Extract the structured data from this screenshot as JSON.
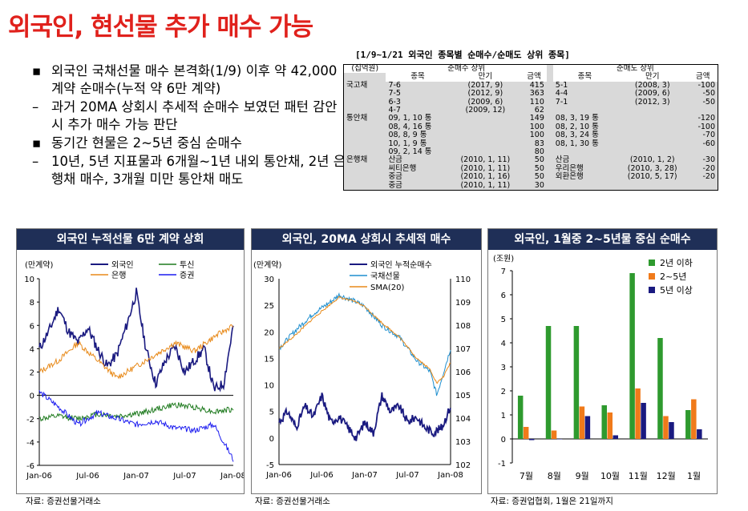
{
  "title": "외국인, 현선물 추가 매수 가능",
  "bullets": [
    {
      "marker": "▪",
      "text": "외국인 국채선물 매수 본격화(1/9) 이후 약 42,000계약 순매수(누적 약 6만 계약)"
    },
    {
      "marker": "–",
      "text": "과거 20MA 상회시 추세적 순매수 보였던 패턴 감안시 추가 매수 가능 판단"
    },
    {
      "marker": "▪",
      "text": "동기간 현물은 2~5년 중심 순매수"
    },
    {
      "marker": "–",
      "text": "10년, 5년 지표물과 6개월~1년 내외 통안채, 2년 은행채 매수, 3개월 미만 통안채 매도"
    }
  ],
  "table": {
    "title": "[1/9~1/21 외국인 종목별 순매수/순매도 상위 종목]",
    "unit": "(십억원)",
    "buy_header": "순매수 상위",
    "sell_header": "순매도 상위",
    "cols": [
      "종목",
      "만기",
      "금액",
      "종목",
      "만기",
      "금액"
    ],
    "groups": [
      {
        "name": "국고채",
        "rows": [
          [
            "7-6",
            "(2017, 9)",
            "415",
            "5-1",
            "(2008, 3)",
            "-100"
          ],
          [
            "7-5",
            "(2012, 9)",
            "363",
            "4-4",
            "(2009, 6)",
            "-50"
          ],
          [
            "6-3",
            "(2009, 6)",
            "110",
            "7-1",
            "(2012, 3)",
            "-50"
          ],
          [
            "4-7",
            "(2009, 12)",
            "62",
            "",
            "",
            ""
          ]
        ]
      },
      {
        "name": "통안채",
        "rows": [
          [
            "09, 1, 10 통",
            "",
            "149",
            "08, 3, 19 통",
            "",
            "-120"
          ],
          [
            "08, 4, 16 통",
            "",
            "100",
            "08, 2, 10 통",
            "",
            "-100"
          ],
          [
            "08, 8, 9 통",
            "",
            "100",
            "08, 3, 24 통",
            "",
            "-70"
          ],
          [
            "10, 1, 9 통",
            "",
            "83",
            "08, 1, 30 통",
            "",
            "-60"
          ],
          [
            "09, 2, 14 통",
            "",
            "80",
            "",
            "",
            ""
          ]
        ]
      },
      {
        "name": "은행채",
        "rows": [
          [
            "산금",
            "(2010, 1, 11)",
            "50",
            "산금",
            "(2010, 1, 2)",
            "-30"
          ],
          [
            "씨티은행",
            "(2010, 1, 11)",
            "50",
            "우리은행",
            "(2010, 3, 28)",
            "-20"
          ],
          [
            "중금",
            "(2010, 1, 16)",
            "50",
            "외환은행",
            "(2010, 5, 17)",
            "-20"
          ],
          [
            "중금",
            "(2010, 1, 11)",
            "30",
            "",
            "",
            ""
          ]
        ]
      }
    ]
  },
  "panels": [
    {
      "title": "외국인 누적선물 6만 계약 상회",
      "source": "자료: 증권선물거래소"
    },
    {
      "title": "외국인, 20MA 상회시 추세적 매수",
      "source": "자료: 증권선물거래소"
    },
    {
      "title": "외국인, 1월중 2~5년물 중심 순매수",
      "source": "자료: 증권업협회, 1월은 21일까지"
    }
  ],
  "chart_data": [
    {
      "type": "line",
      "ylabel": "(만계약)",
      "ylim": [
        -6,
        10
      ],
      "yticks": [
        "10",
        "8",
        "6",
        "4",
        "2",
        "0",
        "-2",
        "-4",
        "-6"
      ],
      "xticks": [
        "Jan-06",
        "Jul-06",
        "Jan-07",
        "Jul-07",
        "Jan-08"
      ],
      "legend_placement": "top",
      "series": [
        {
          "name": "외국인",
          "color": "#1a1a80",
          "values": [
            [
              0,
              4
            ],
            [
              0.05,
              5.5
            ],
            [
              0.1,
              7.5
            ],
            [
              0.15,
              5.5
            ],
            [
              0.2,
              4.5
            ],
            [
              0.25,
              5.8
            ],
            [
              0.3,
              4
            ],
            [
              0.35,
              2.5
            ],
            [
              0.4,
              3.5
            ],
            [
              0.45,
              6
            ],
            [
              0.5,
              8.8
            ],
            [
              0.55,
              4
            ],
            [
              0.6,
              1
            ],
            [
              0.65,
              3
            ],
            [
              0.7,
              4.2
            ],
            [
              0.75,
              2
            ],
            [
              0.8,
              3
            ],
            [
              0.85,
              4
            ],
            [
              0.9,
              0.5
            ],
            [
              0.95,
              1
            ],
            [
              1,
              6
            ]
          ]
        },
        {
          "name": "투신",
          "color": "#1e7a1e",
          "values": [
            [
              0,
              -2
            ],
            [
              0.1,
              -1.8
            ],
            [
              0.2,
              -2
            ],
            [
              0.3,
              -1.6
            ],
            [
              0.4,
              -1.8
            ],
            [
              0.5,
              -1.6
            ],
            [
              0.6,
              -1.2
            ],
            [
              0.7,
              -0.8
            ],
            [
              0.8,
              -1
            ],
            [
              0.9,
              -1.4
            ],
            [
              1,
              -1.2
            ]
          ]
        },
        {
          "name": "은행",
          "color": "#e88a1a",
          "values": [
            [
              0,
              2
            ],
            [
              0.1,
              3
            ],
            [
              0.2,
              4.5
            ],
            [
              0.3,
              3
            ],
            [
              0.4,
              1.5
            ],
            [
              0.5,
              2.5
            ],
            [
              0.6,
              3.5
            ],
            [
              0.7,
              4.5
            ],
            [
              0.8,
              3.8
            ],
            [
              0.9,
              5
            ],
            [
              1,
              6
            ]
          ]
        },
        {
          "name": "증권",
          "color": "#1c1cf0",
          "values": [
            [
              0,
              0.3
            ],
            [
              0.1,
              -1
            ],
            [
              0.2,
              -2.5
            ],
            [
              0.3,
              -1.5
            ],
            [
              0.4,
              -2
            ],
            [
              0.5,
              -2.5
            ],
            [
              0.6,
              -2.2
            ],
            [
              0.7,
              -2.8
            ],
            [
              0.8,
              -3
            ],
            [
              0.9,
              -2.5
            ],
            [
              1,
              -5.5
            ]
          ]
        }
      ]
    },
    {
      "type": "line",
      "ylabel": "(만계약)",
      "ylim": [
        -5,
        30
      ],
      "y2lim": [
        102,
        110
      ],
      "yticks": [
        "30",
        "25",
        "20",
        "15",
        "10",
        "5",
        "0",
        "-5"
      ],
      "y2ticks": [
        "110",
        "109",
        "108",
        "107",
        "106",
        "105",
        "104",
        "103",
        "102"
      ],
      "xticks": [
        "Jan-06",
        "Jul-06",
        "Jan-07",
        "Jul-07",
        "Jan-08"
      ],
      "legend_placement": "top-right",
      "series": [
        {
          "name": "외국인 누적순매수",
          "color": "#1a1a80",
          "axis": "left",
          "values": [
            [
              0,
              3
            ],
            [
              0.05,
              5
            ],
            [
              0.1,
              2
            ],
            [
              0.15,
              6
            ],
            [
              0.2,
              4
            ],
            [
              0.25,
              8
            ],
            [
              0.3,
              3
            ],
            [
              0.35,
              4
            ],
            [
              0.4,
              2
            ],
            [
              0.45,
              0
            ],
            [
              0.5,
              3
            ],
            [
              0.55,
              1
            ],
            [
              0.6,
              8
            ],
            [
              0.65,
              5
            ],
            [
              0.7,
              6
            ],
            [
              0.75,
              3
            ],
            [
              0.8,
              4
            ],
            [
              0.85,
              2
            ],
            [
              0.9,
              1
            ],
            [
              0.95,
              2
            ],
            [
              1,
              6
            ]
          ]
        },
        {
          "name": "국채선물",
          "color": "#1f8fcf",
          "axis": "right",
          "values": [
            [
              0,
              107
            ],
            [
              0.1,
              107.8
            ],
            [
              0.2,
              108.5
            ],
            [
              0.3,
              109
            ],
            [
              0.35,
              109.3
            ],
            [
              0.45,
              109
            ],
            [
              0.5,
              108.8
            ],
            [
              0.6,
              108
            ],
            [
              0.7,
              107.5
            ],
            [
              0.8,
              106.5
            ],
            [
              0.88,
              106
            ],
            [
              0.92,
              105
            ],
            [
              0.96,
              106
            ],
            [
              1,
              107
            ]
          ]
        },
        {
          "name": "SMA(20)",
          "color": "#e88a1a",
          "axis": "right",
          "values": [
            [
              0,
              107
            ],
            [
              0.1,
              107.6
            ],
            [
              0.2,
              108.3
            ],
            [
              0.3,
              108.9
            ],
            [
              0.35,
              109.2
            ],
            [
              0.45,
              109
            ],
            [
              0.5,
              108.8
            ],
            [
              0.6,
              108.1
            ],
            [
              0.7,
              107.5
            ],
            [
              0.8,
              106.6
            ],
            [
              0.88,
              106.1
            ],
            [
              0.92,
              105.5
            ],
            [
              0.96,
              105.8
            ],
            [
              1,
              106.4
            ]
          ]
        }
      ]
    },
    {
      "type": "bar",
      "ylabel": "(조원)",
      "ylim": [
        -1,
        7
      ],
      "categories": [
        "7월",
        "8월",
        "9월",
        "10월",
        "11월",
        "12월",
        "1월"
      ],
      "legend_placement": "top-right",
      "series": [
        {
          "name": "2년 이하",
          "color": "#2e9a2e",
          "values": [
            1.8,
            4.7,
            4.7,
            1.4,
            6.9,
            4.2,
            1.2
          ]
        },
        {
          "name": "2~5년",
          "color": "#f07a1a",
          "values": [
            0.5,
            0.35,
            1.35,
            1.1,
            2.1,
            0.95,
            1.65
          ]
        },
        {
          "name": "5년 이상",
          "color": "#1a1a80",
          "values": [
            -0.05,
            0,
            0.95,
            0.15,
            1.5,
            0.7,
            0.4
          ]
        }
      ]
    }
  ]
}
